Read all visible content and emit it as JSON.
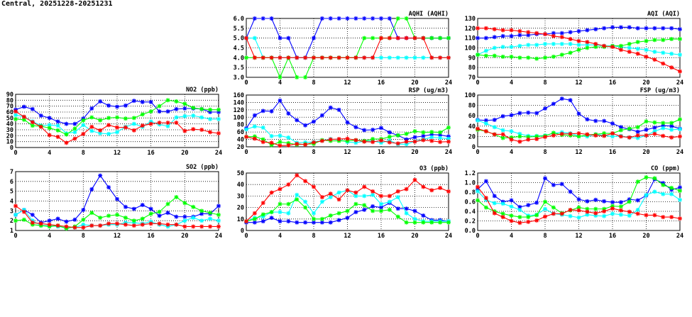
{
  "title": "Central, 20251228-20251231",
  "series_colors": [
    "#0000ff",
    "#00ffff",
    "#00ff00",
    "#ff0000"
  ],
  "chart_data": [
    {
      "type": "line",
      "title": "AQHI (AQHI)",
      "ylim": [
        3,
        6
      ],
      "yticks": [
        "3.0",
        "3.5",
        "4.0",
        "4.5",
        "5.0",
        "5.5",
        "6.0"
      ],
      "xlim": [
        0,
        24
      ],
      "xticks": [
        "0",
        "4",
        "8",
        "12",
        "16",
        "20",
        "24"
      ],
      "grid": true,
      "series": [
        {
          "color": "#0000ff",
          "values": [
            5,
            6,
            6,
            6,
            5,
            5,
            4,
            4,
            5,
            6,
            6,
            6,
            6,
            6,
            6,
            6,
            6,
            6,
            5,
            5,
            5,
            5,
            5,
            5,
            5
          ]
        },
        {
          "color": "#00ffff",
          "values": [
            5,
            5,
            4,
            4,
            4,
            4,
            4,
            4,
            4,
            4,
            4,
            4,
            4,
            4,
            4,
            4,
            4,
            4,
            4,
            4,
            4,
            4,
            4,
            4,
            4
          ]
        },
        {
          "color": "#00ff00",
          "values": [
            4,
            4,
            4,
            4,
            3,
            4,
            3,
            3,
            4,
            4,
            4,
            4,
            4,
            4,
            5,
            5,
            5,
            5,
            6,
            6,
            5,
            5,
            5,
            5,
            5
          ]
        },
        {
          "color": "#ff0000",
          "values": [
            5,
            4,
            4,
            4,
            4,
            4,
            4,
            4,
            4,
            4,
            4,
            4,
            4,
            4,
            4,
            4,
            5,
            5,
            5,
            5,
            5,
            5,
            4,
            4,
            4
          ]
        }
      ]
    },
    {
      "type": "line",
      "title": "AQI (AQI)",
      "ylim": [
        70,
        130
      ],
      "yticks": [
        "70",
        "80",
        "90",
        "100",
        "110",
        "120",
        "130"
      ],
      "xlim": [
        0,
        24
      ],
      "xticks": [
        "0",
        "4",
        "8",
        "12",
        "16",
        "20",
        "24"
      ],
      "grid": true,
      "series": [
        {
          "color": "#0000ff",
          "values": [
            110,
            110,
            111,
            112,
            112,
            113,
            113,
            114,
            114,
            115,
            115,
            116,
            117,
            118,
            119,
            120,
            121,
            121,
            121,
            120,
            120,
            120,
            120,
            120,
            119
          ]
        },
        {
          "color": "#00ffff",
          "values": [
            93,
            97,
            100,
            101,
            101,
            102,
            103,
            103,
            104,
            104,
            104,
            104,
            103,
            103,
            103,
            102,
            102,
            101,
            100,
            99,
            98,
            96,
            95,
            94,
            93
          ]
        },
        {
          "color": "#00ff00",
          "values": [
            93,
            92,
            92,
            91,
            91,
            90,
            90,
            89,
            90,
            91,
            93,
            95,
            98,
            100,
            101,
            101,
            102,
            102,
            104,
            106,
            107,
            108,
            108,
            109,
            109
          ]
        },
        {
          "color": "#ff0000",
          "values": [
            120,
            120,
            119,
            118,
            118,
            117,
            116,
            115,
            114,
            112,
            111,
            109,
            107,
            106,
            104,
            102,
            101,
            98,
            96,
            94,
            91,
            88,
            84,
            80,
            76
          ]
        }
      ]
    },
    {
      "type": "line",
      "title": "NO2 (ppb)",
      "ylim": [
        0,
        90
      ],
      "yticks": [
        "0",
        "10",
        "20",
        "30",
        "40",
        "50",
        "60",
        "70",
        "80",
        "90"
      ],
      "xlim": [
        0,
        24
      ],
      "xticks": [
        "0",
        "4",
        "8",
        "12",
        "16",
        "20",
        "24"
      ],
      "grid": true,
      "series": [
        {
          "color": "#0000ff",
          "values": [
            64,
            69,
            65,
            54,
            50,
            44,
            40,
            40,
            49,
            66,
            78,
            71,
            69,
            71,
            79,
            77,
            77,
            61,
            61,
            65,
            66,
            66,
            65,
            60,
            60
          ]
        },
        {
          "color": "#00ffff",
          "values": [
            55,
            52,
            44,
            37,
            38,
            37,
            24,
            26,
            38,
            28,
            24,
            23,
            26,
            35,
            40,
            35,
            44,
            39,
            36,
            51,
            53,
            54,
            51,
            48,
            48
          ]
        },
        {
          "color": "#00ff00",
          "values": [
            48,
            47,
            37,
            36,
            33,
            29,
            22,
            32,
            46,
            51,
            46,
            50,
            51,
            49,
            50,
            56,
            61,
            70,
            80,
            78,
            74,
            67,
            65,
            64,
            64
          ]
        },
        {
          "color": "#ff0000",
          "values": [
            61,
            52,
            43,
            35,
            21,
            18,
            8,
            15,
            23,
            35,
            29,
            38,
            34,
            34,
            29,
            37,
            40,
            42,
            42,
            42,
            28,
            31,
            30,
            26,
            24
          ]
        }
      ]
    },
    {
      "type": "line",
      "title": "RSP (ug/m3)",
      "ylim": [
        20,
        160
      ],
      "yticks": [
        "20",
        "40",
        "60",
        "80",
        "100",
        "120",
        "140",
        "160"
      ],
      "xlim": [
        0,
        24
      ],
      "xticks": [
        "0",
        "4",
        "8",
        "12",
        "16",
        "20",
        "24"
      ],
      "grid": true,
      "series": [
        {
          "color": "#0000ff",
          "values": [
            70,
            105,
            117,
            116,
            145,
            110,
            92,
            78,
            88,
            105,
            126,
            120,
            86,
            73,
            65,
            66,
            71,
            59,
            51,
            40,
            46,
            49,
            53,
            52,
            48
          ]
        },
        {
          "color": "#00ffff",
          "values": [
            67,
            75,
            72,
            49,
            50,
            45,
            31,
            32,
            33,
            37,
            41,
            39,
            33,
            31,
            35,
            36,
            31,
            37,
            27,
            27,
            35,
            40,
            46,
            44,
            42
          ]
        },
        {
          "color": "#00ff00",
          "values": [
            47,
            48,
            40,
            25,
            33,
            30,
            26,
            27,
            28,
            38,
            36,
            36,
            36,
            38,
            36,
            41,
            41,
            47,
            51,
            55,
            62,
            59,
            60,
            59,
            72
          ]
        },
        {
          "color": "#ff0000",
          "values": [
            47,
            42,
            33,
            31,
            23,
            24,
            28,
            26,
            32,
            36,
            40,
            41,
            42,
            38,
            34,
            33,
            37,
            32,
            29,
            34,
            34,
            38,
            36,
            33,
            34
          ]
        }
      ]
    },
    {
      "type": "line",
      "title": "FSP (ug/m3)",
      "ylim": [
        0,
        100
      ],
      "yticks": [
        "0",
        "20",
        "40",
        "60",
        "80",
        "100"
      ],
      "xlim": [
        0,
        24
      ],
      "xticks": [
        "0",
        "4",
        "8",
        "12",
        "16",
        "20",
        "24"
      ],
      "grid": true,
      "series": [
        {
          "color": "#0000ff",
          "values": [
            52,
            51,
            52,
            59,
            61,
            65,
            66,
            65,
            74,
            83,
            93,
            90,
            64,
            53,
            50,
            50,
            45,
            38,
            34,
            29,
            33,
            37,
            41,
            40,
            35
          ]
        },
        {
          "color": "#00ffff",
          "values": [
            51,
            45,
            38,
            32,
            30,
            25,
            21,
            21,
            22,
            26,
            28,
            26,
            21,
            20,
            24,
            22,
            20,
            21,
            18,
            17,
            22,
            30,
            36,
            33,
            34
          ]
        },
        {
          "color": "#00ff00",
          "values": [
            33,
            30,
            24,
            17,
            18,
            20,
            19,
            20,
            21,
            27,
            23,
            22,
            20,
            23,
            24,
            26,
            26,
            32,
            35,
            38,
            49,
            47,
            46,
            46,
            53
          ]
        },
        {
          "color": "#ff0000",
          "values": [
            35,
            30,
            24,
            24,
            14,
            10,
            14,
            15,
            19,
            22,
            25,
            25,
            26,
            24,
            22,
            21,
            26,
            20,
            18,
            22,
            22,
            25,
            21,
            18,
            20
          ]
        }
      ]
    },
    {
      "type": "line",
      "title": "SO2 (ppb)",
      "ylim": [
        1,
        7
      ],
      "yticks": [
        "1",
        "2",
        "3",
        "4",
        "5",
        "6",
        "7"
      ],
      "xlim": [
        0,
        24
      ],
      "xticks": [
        "0",
        "4",
        "8",
        "12",
        "16",
        "20",
        "24"
      ],
      "grid": true,
      "series": [
        {
          "color": "#0000ff",
          "values": [
            2.6,
            3.1,
            2.6,
            1.8,
            2.0,
            2.2,
            1.9,
            2.1,
            3.1,
            5.2,
            6.6,
            5.4,
            4.2,
            3.4,
            3.2,
            3.6,
            3.2,
            2.5,
            2.8,
            2.4,
            2.4,
            2.4,
            2.7,
            2.7,
            3.5
          ]
        },
        {
          "color": "#00ffff",
          "values": [
            2.6,
            3.1,
            2.0,
            1.5,
            1.5,
            1.4,
            1.3,
            1.3,
            1.6,
            1.5,
            1.5,
            1.6,
            1.6,
            1.8,
            1.8,
            1.7,
            1.9,
            1.6,
            1.4,
            1.6,
            2.0,
            2.3,
            2.0,
            2.2,
            2.0
          ]
        },
        {
          "color": "#00ff00",
          "values": [
            2.0,
            2.1,
            1.6,
            1.5,
            1.4,
            1.5,
            1.2,
            1.4,
            2.1,
            2.8,
            2.3,
            2.5,
            2.6,
            2.3,
            2.0,
            2.2,
            2.7,
            2.9,
            3.7,
            4.4,
            3.8,
            3.4,
            3.0,
            2.8,
            2.6
          ]
        },
        {
          "color": "#ff0000",
          "values": [
            3.5,
            2.9,
            1.8,
            1.7,
            1.6,
            1.5,
            1.4,
            1.3,
            1.3,
            1.5,
            1.5,
            1.7,
            1.7,
            1.6,
            1.5,
            1.6,
            1.7,
            1.7,
            1.6,
            1.6,
            1.4,
            1.4,
            1.4,
            1.4,
            1.4
          ]
        }
      ]
    },
    {
      "type": "line",
      "title": "O3 (ppb)",
      "ylim": [
        0,
        50
      ],
      "yticks": [
        "0",
        "10",
        "20",
        "30",
        "40",
        "50"
      ],
      "xlim": [
        0,
        24
      ],
      "xticks": [
        "0",
        "4",
        "8",
        "12",
        "16",
        "20",
        "24"
      ],
      "grid": true,
      "series": [
        {
          "color": "#0000ff",
          "values": [
            7,
            7,
            8,
            11,
            8,
            8,
            7,
            7,
            7,
            7,
            7,
            9,
            11,
            16,
            18,
            21,
            20,
            24,
            19,
            19,
            17,
            13,
            9,
            9,
            8
          ]
        },
        {
          "color": "#00ffff",
          "values": [
            8,
            11,
            12,
            16,
            16,
            15,
            31,
            25,
            15,
            25,
            29,
            33,
            35,
            30,
            30,
            31,
            23,
            25,
            29,
            15,
            10,
            8,
            8,
            8,
            8
          ]
        },
        {
          "color": "#00ff00",
          "values": [
            8,
            10,
            14,
            16,
            23,
            23,
            27,
            20,
            10,
            10,
            13,
            15,
            17,
            23,
            22,
            17,
            17,
            18,
            12,
            7,
            7,
            7,
            7,
            7,
            7
          ]
        },
        {
          "color": "#ff0000",
          "values": [
            8,
            15,
            24,
            33,
            36,
            40,
            48,
            43,
            38,
            29,
            32,
            27,
            35,
            33,
            38,
            34,
            30,
            30,
            34,
            36,
            44,
            38,
            35,
            37,
            34
          ]
        }
      ]
    },
    {
      "type": "line",
      "title": "CO (ppm)",
      "ylim": [
        0,
        1.2
      ],
      "yticks": [
        "0.0",
        "0.2",
        "0.4",
        "0.6",
        "0.8",
        "1.0",
        "1.2"
      ],
      "xlim": [
        0,
        24
      ],
      "xticks": [
        "0",
        "4",
        "8",
        "12",
        "16",
        "20",
        "24"
      ],
      "grid": true,
      "series": [
        {
          "color": "#0000ff",
          "values": [
            0.86,
            1.03,
            0.72,
            0.6,
            0.63,
            0.49,
            0.53,
            0.58,
            1.09,
            0.95,
            0.97,
            0.81,
            0.65,
            0.61,
            0.64,
            0.61,
            0.59,
            0.59,
            0.65,
            0.63,
            0.73,
            1.07,
            0.99,
            0.85,
            0.9
          ]
        },
        {
          "color": "#00ffff",
          "values": [
            0.82,
            0.64,
            0.57,
            0.56,
            0.5,
            0.43,
            0.31,
            0.33,
            0.45,
            0.35,
            0.33,
            0.3,
            0.27,
            0.33,
            0.31,
            0.3,
            0.35,
            0.33,
            0.31,
            0.43,
            0.74,
            0.81,
            0.76,
            0.76,
            0.64
          ]
        },
        {
          "color": "#00ff00",
          "values": [
            0.63,
            0.48,
            0.4,
            0.35,
            0.31,
            0.28,
            0.28,
            0.32,
            0.6,
            0.48,
            0.36,
            0.42,
            0.48,
            0.45,
            0.45,
            0.45,
            0.51,
            0.5,
            0.6,
            1.02,
            1.11,
            1.09,
            0.95,
            0.89,
            0.83
          ]
        },
        {
          "color": "#ff0000",
          "values": [
            0.91,
            0.68,
            0.36,
            0.28,
            0.2,
            0.16,
            0.18,
            0.21,
            0.29,
            0.35,
            0.35,
            0.43,
            0.42,
            0.39,
            0.36,
            0.4,
            0.46,
            0.42,
            0.39,
            0.35,
            0.32,
            0.32,
            0.28,
            0.28,
            0.25
          ]
        }
      ]
    }
  ]
}
